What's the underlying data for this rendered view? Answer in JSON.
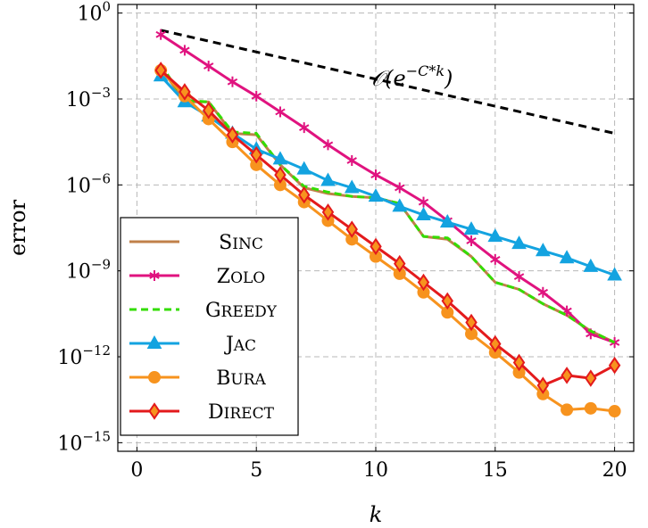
{
  "chart_data": {
    "type": "line",
    "title": "",
    "xlabel": "k",
    "ylabel": "error",
    "yscale": "log",
    "grid": true,
    "grid_style": "dashed",
    "xlim": [
      -0.8,
      20.8
    ],
    "ylim_log10": [
      -15.3,
      0.3
    ],
    "x_ticks": [
      0,
      5,
      10,
      15,
      20
    ],
    "x_tick_labels": [
      "0",
      "5",
      "10",
      "15",
      "20"
    ],
    "y_ticks_log10": [
      0,
      -3,
      -6,
      -9,
      -12,
      -15
    ],
    "y_tick_labels": [
      {
        "base": "10",
        "exp": "0"
      },
      {
        "base": "10",
        "exp": "−3"
      },
      {
        "base": "10",
        "exp": "−6"
      },
      {
        "base": "10",
        "exp": "−9"
      },
      {
        "base": "10",
        "exp": "−12"
      },
      {
        "base": "10",
        "exp": "−15"
      }
    ],
    "legend_position": "bottom-left",
    "reference_line": {
      "label": "𝒪(e^{−C*k})",
      "label_main": "𝒪(e",
      "label_sup": "−C*k",
      "label_close": ")",
      "x": [
        1,
        20
      ],
      "log10_y": [
        -0.6,
        -4.2
      ],
      "color": "#000000",
      "style": "dashed"
    },
    "x": [
      1,
      2,
      3,
      4,
      5,
      6,
      7,
      8,
      9,
      10,
      11,
      12,
      13,
      14,
      15,
      16,
      17,
      18,
      19,
      20
    ],
    "series": [
      {
        "name": "Sinc",
        "legend_first": "S",
        "legend_rest": "INC",
        "color": "#c0804a",
        "marker": "none",
        "dash": "solid",
        "log10_y": [
          -1.9,
          -3.1,
          -3.1,
          -4.2,
          -4.25,
          -5.3,
          -6.1,
          -6.3,
          -6.4,
          -6.45,
          -6.65,
          -7.8,
          -7.9,
          -8.5,
          -9.4,
          -9.65,
          -10.15,
          -10.55,
          -11.1,
          -11.5
        ]
      },
      {
        "name": "Zolo",
        "legend_first": "Z",
        "legend_rest": "OLO",
        "color": "#e0137f",
        "marker": "star",
        "dash": "solid",
        "log10_y": [
          -0.75,
          -1.3,
          -1.85,
          -2.4,
          -2.9,
          -3.45,
          -4.0,
          -4.6,
          -5.15,
          -5.65,
          -6.1,
          -6.6,
          -7.25,
          -7.95,
          -8.6,
          -9.2,
          -9.75,
          -10.4,
          -11.2,
          -11.5
        ]
      },
      {
        "name": "Greedy",
        "legend_first": "G",
        "legend_rest": "REEDY",
        "color": "#33dd00",
        "marker": "none",
        "dash": "dashed",
        "log10_y": [
          -1.8,
          -3.05,
          -3.1,
          -4.15,
          -4.2,
          -5.3,
          -6.05,
          -6.25,
          -6.4,
          -6.45,
          -6.65,
          -7.8,
          -7.85,
          -8.5,
          -9.4,
          -9.65,
          -10.15,
          -10.55,
          -11.1,
          -11.5
        ]
      },
      {
        "name": "Jac",
        "legend_first": "J",
        "legend_rest": "AC",
        "color": "#13a3e0",
        "marker": "triangle",
        "dash": "solid",
        "log10_y": [
          -2.2,
          -3.1,
          -3.6,
          -4.2,
          -4.75,
          -5.1,
          -5.45,
          -5.85,
          -6.1,
          -6.4,
          -6.75,
          -7.05,
          -7.3,
          -7.55,
          -7.8,
          -8.05,
          -8.3,
          -8.55,
          -8.85,
          -9.15
        ]
      },
      {
        "name": "Bura",
        "legend_first": "B",
        "legend_rest": "URA",
        "color": "#f7931e",
        "marker": "circle",
        "dash": "solid",
        "log10_y": [
          -2.0,
          -2.9,
          -3.7,
          -4.5,
          -5.3,
          -6.0,
          -6.6,
          -7.25,
          -7.9,
          -8.5,
          -9.1,
          -9.75,
          -10.45,
          -11.2,
          -11.85,
          -12.55,
          -13.3,
          -13.85,
          -13.8,
          -13.9
        ]
      },
      {
        "name": "Direct",
        "legend_first": "D",
        "legend_rest": "IRECT",
        "color": "#e31a1c",
        "marker": "diamond",
        "dash": "solid",
        "log10_y": [
          -2.0,
          -2.75,
          -3.4,
          -4.25,
          -4.95,
          -5.65,
          -6.35,
          -6.95,
          -7.55,
          -8.15,
          -8.75,
          -9.4,
          -10.05,
          -10.8,
          -11.55,
          -12.2,
          -13.0,
          -12.65,
          -12.75,
          -12.3
        ]
      }
    ]
  }
}
